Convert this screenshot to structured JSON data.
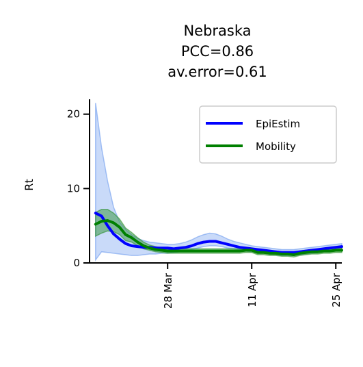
{
  "chart_data": {
    "type": "line",
    "title_lines": [
      "Nebraska",
      "PCC=0.86",
      "av.error=0.61"
    ],
    "xlabel": "",
    "ylabel": "Rt",
    "ylim": [
      0,
      22
    ],
    "yticks": [
      0,
      10,
      20
    ],
    "xlim": [
      "2020-03-15",
      "2020-04-26"
    ],
    "xticks": [
      {
        "date": "2020-03-28",
        "label": "28 Mar"
      },
      {
        "date": "2020-04-11",
        "label": "11 Apr"
      },
      {
        "date": "2020-04-25",
        "label": "25 Apr"
      }
    ],
    "legend_position": "top-right",
    "x": [
      "2020-03-16",
      "2020-03-17",
      "2020-03-18",
      "2020-03-19",
      "2020-03-20",
      "2020-03-21",
      "2020-03-22",
      "2020-03-23",
      "2020-03-24",
      "2020-03-25",
      "2020-03-26",
      "2020-03-27",
      "2020-03-28",
      "2020-03-29",
      "2020-03-30",
      "2020-03-31",
      "2020-04-01",
      "2020-04-02",
      "2020-04-03",
      "2020-04-04",
      "2020-04-05",
      "2020-04-06",
      "2020-04-07",
      "2020-04-08",
      "2020-04-09",
      "2020-04-10",
      "2020-04-11",
      "2020-04-12",
      "2020-04-13",
      "2020-04-14",
      "2020-04-15",
      "2020-04-16",
      "2020-04-17",
      "2020-04-18",
      "2020-04-19",
      "2020-04-20",
      "2020-04-21",
      "2020-04-22",
      "2020-04-23",
      "2020-04-24",
      "2020-04-25",
      "2020-04-26"
    ],
    "series": [
      {
        "name": "EpiEstim",
        "color": "#0000ff",
        "band_color": "#6495ed",
        "values": [
          6.7,
          6.3,
          5.0,
          3.9,
          3.2,
          2.6,
          2.3,
          2.2,
          2.1,
          2.1,
          2.0,
          2.0,
          2.0,
          1.9,
          2.0,
          2.1,
          2.3,
          2.6,
          2.8,
          2.9,
          2.9,
          2.7,
          2.5,
          2.3,
          2.1,
          2.0,
          1.9,
          1.8,
          1.7,
          1.6,
          1.5,
          1.4,
          1.4,
          1.4,
          1.5,
          1.6,
          1.7,
          1.8,
          1.9,
          2.0,
          2.1,
          2.2
        ],
        "lower": [
          0.4,
          1.5,
          1.4,
          1.3,
          1.2,
          1.1,
          1.0,
          1.0,
          1.1,
          1.2,
          1.2,
          1.3,
          1.3,
          1.4,
          1.5,
          1.6,
          1.8,
          2.0,
          2.2,
          2.3,
          2.3,
          2.2,
          2.0,
          1.9,
          1.8,
          1.6,
          1.5,
          1.4,
          1.3,
          1.2,
          1.1,
          1.0,
          1.0,
          1.0,
          1.1,
          1.2,
          1.3,
          1.4,
          1.5,
          1.6,
          1.7,
          1.8
        ],
        "upper": [
          21.5,
          15.5,
          11.0,
          7.5,
          5.5,
          4.5,
          3.8,
          3.3,
          3.0,
          2.8,
          2.7,
          2.6,
          2.5,
          2.5,
          2.6,
          2.8,
          3.1,
          3.5,
          3.8,
          4.0,
          3.9,
          3.6,
          3.2,
          2.9,
          2.7,
          2.5,
          2.3,
          2.2,
          2.1,
          2.0,
          1.9,
          1.8,
          1.8,
          1.8,
          1.9,
          2.0,
          2.1,
          2.2,
          2.3,
          2.4,
          2.5,
          2.6
        ]
      },
      {
        "name": "Mobility",
        "color": "#008000",
        "band_color": "#228b22",
        "values": [
          5.2,
          5.6,
          5.7,
          5.4,
          4.8,
          3.8,
          3.4,
          2.8,
          2.3,
          2.0,
          1.8,
          1.7,
          1.6,
          1.6,
          1.6,
          1.6,
          1.6,
          1.6,
          1.6,
          1.6,
          1.6,
          1.6,
          1.6,
          1.6,
          1.6,
          1.7,
          1.7,
          1.4,
          1.4,
          1.3,
          1.3,
          1.2,
          1.2,
          1.1,
          1.3,
          1.4,
          1.5,
          1.5,
          1.6,
          1.6,
          1.7,
          1.7
        ],
        "lower": [
          3.6,
          4.0,
          4.3,
          4.2,
          3.8,
          3.0,
          2.8,
          2.3,
          1.9,
          1.7,
          1.5,
          1.4,
          1.3,
          1.3,
          1.3,
          1.3,
          1.3,
          1.3,
          1.3,
          1.3,
          1.3,
          1.3,
          1.3,
          1.3,
          1.3,
          1.4,
          1.4,
          1.1,
          1.1,
          1.0,
          1.0,
          0.9,
          0.9,
          0.8,
          1.0,
          1.1,
          1.2,
          1.2,
          1.3,
          1.3,
          1.4,
          1.4
        ],
        "upper": [
          6.8,
          7.2,
          7.2,
          6.7,
          5.9,
          4.7,
          4.1,
          3.4,
          2.8,
          2.4,
          2.2,
          2.0,
          1.9,
          1.9,
          1.9,
          1.9,
          1.9,
          1.9,
          1.9,
          1.9,
          1.9,
          1.9,
          1.9,
          1.9,
          1.9,
          2.0,
          2.0,
          1.7,
          1.7,
          1.6,
          1.6,
          1.5,
          1.5,
          1.4,
          1.6,
          1.7,
          1.8,
          1.8,
          1.9,
          1.9,
          2.0,
          2.0
        ]
      }
    ]
  }
}
